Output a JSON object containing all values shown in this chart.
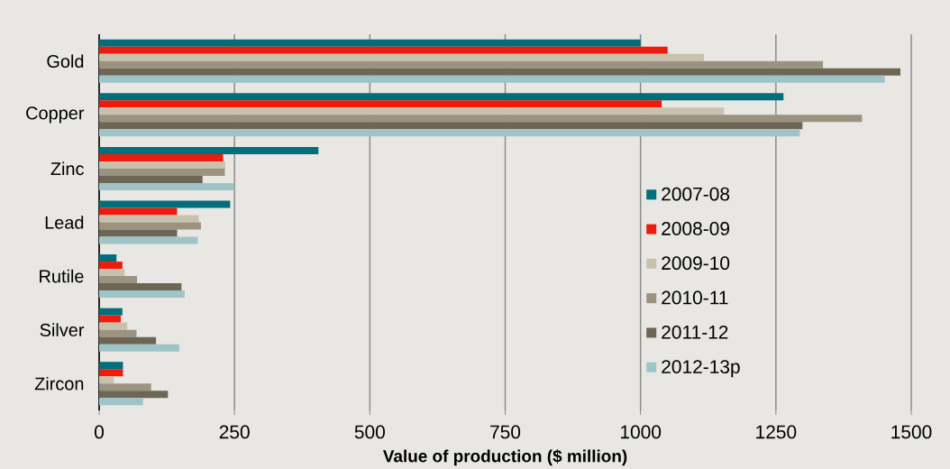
{
  "chart_data": {
    "type": "bar",
    "orientation": "horizontal",
    "categories": [
      "Gold",
      "Copper",
      "Zinc",
      "Lead",
      "Rutile",
      "Silver",
      "Zircon"
    ],
    "series": [
      {
        "name": "2007-08",
        "color": "#006e7b",
        "values": [
          1000,
          1264,
          405,
          242,
          32,
          43,
          44
        ]
      },
      {
        "name": "2008-09",
        "color": "#ee1c0c",
        "values": [
          1050,
          1039,
          229,
          144,
          43,
          40,
          44
        ]
      },
      {
        "name": "2009-10",
        "color": "#c8c1ae",
        "values": [
          1117,
          1154,
          233,
          184,
          47,
          52,
          27
        ]
      },
      {
        "name": "2010-11",
        "color": "#9c9280",
        "values": [
          1337,
          1409,
          232,
          188,
          70,
          69,
          96
        ]
      },
      {
        "name": "2011-12",
        "color": "#6d6654",
        "values": [
          1480,
          1299,
          191,
          144,
          152,
          105,
          127
        ]
      },
      {
        "name": "2012-13p",
        "color": "#9fc4c7",
        "values": [
          1451,
          1294,
          248,
          182,
          158,
          148,
          81
        ]
      }
    ],
    "xlabel": "Value of production ($ million)",
    "xlim": [
      0,
      1500
    ],
    "xticks": [
      0,
      250,
      500,
      750,
      1000,
      1250,
      1500
    ],
    "grid": "x",
    "legend": "bottom right"
  }
}
